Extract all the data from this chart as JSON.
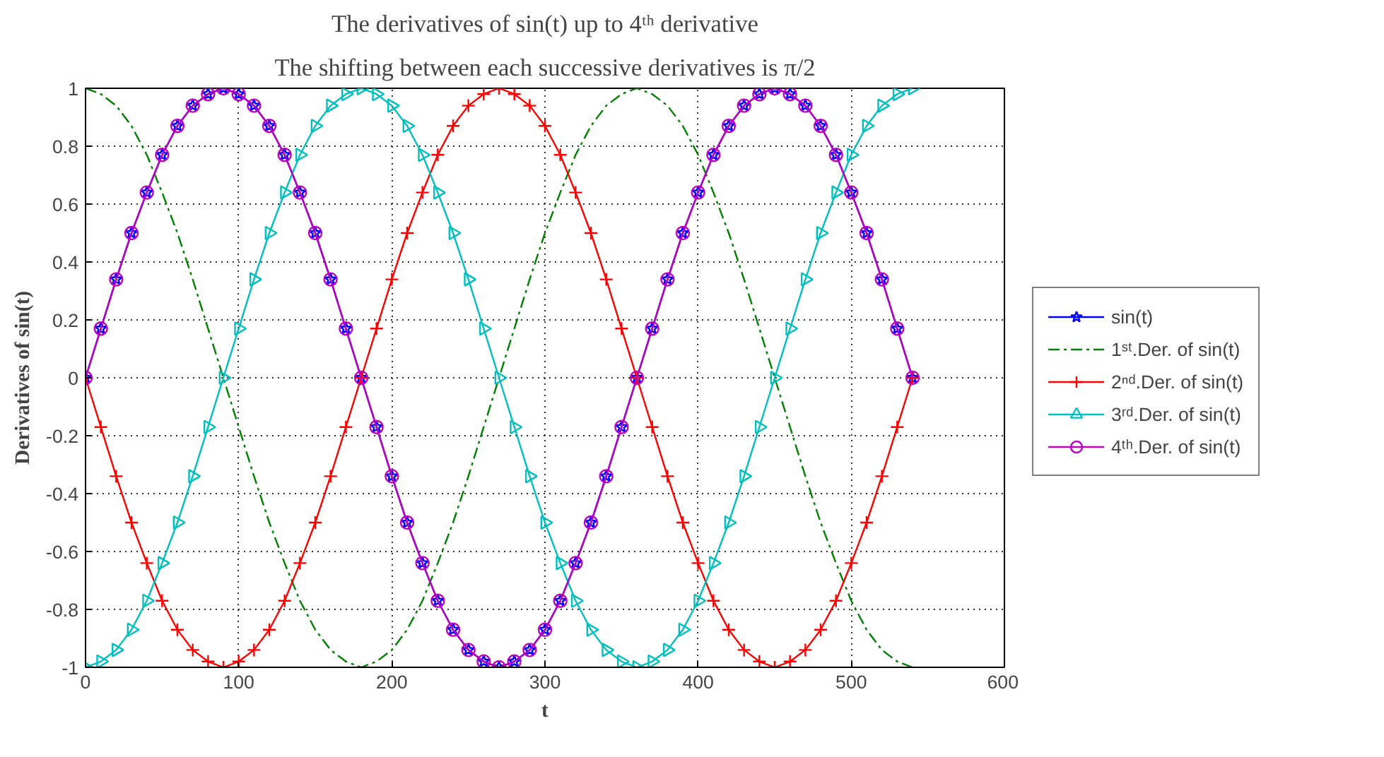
{
  "chart_data": {
    "type": "line",
    "title": "The derivatives of sin(t) up to 4ᵗʰ derivative",
    "subtitle": "The shifting between each successive derivatives is π/2",
    "xlabel": "t",
    "ylabel": "Derivatives of sin(t)",
    "x": [
      0,
      10,
      20,
      30,
      40,
      50,
      60,
      70,
      80,
      90,
      100,
      110,
      120,
      130,
      140,
      150,
      160,
      170,
      180,
      190,
      200,
      210,
      220,
      230,
      240,
      250,
      260,
      270,
      280,
      290,
      300,
      310,
      320,
      330,
      340,
      350,
      360,
      370,
      380,
      390,
      400,
      410,
      420,
      430,
      440,
      450,
      460,
      470,
      480,
      490,
      500,
      510,
      520,
      530,
      540
    ],
    "xlim": [
      0,
      600
    ],
    "xticks": [
      0,
      100,
      200,
      300,
      400,
      500,
      600
    ],
    "ylim": [
      -1,
      1
    ],
    "yticks": [
      -1,
      -0.8,
      -0.6,
      -0.4,
      -0.2,
      0,
      0.2,
      0.4,
      0.6,
      0.8,
      1
    ],
    "grid": true,
    "legend": "right",
    "series": [
      {
        "name": "sin(t)",
        "color": "#0000ff",
        "marker": "star",
        "line_style": "solid",
        "values": [
          0,
          0.17,
          0.34,
          0.5,
          0.64,
          0.77,
          0.87,
          0.94,
          0.98,
          1,
          0.98,
          0.94,
          0.87,
          0.77,
          0.64,
          0.5,
          0.34,
          0.17,
          0,
          -0.17,
          -0.34,
          -0.5,
          -0.64,
          -0.77,
          -0.87,
          -0.94,
          -0.98,
          -1,
          -0.98,
          -0.94,
          -0.87,
          -0.77,
          -0.64,
          -0.5,
          -0.34,
          -0.17,
          0,
          0.17,
          0.34,
          0.5,
          0.64,
          0.77,
          0.87,
          0.94,
          0.98,
          1,
          0.98,
          0.94,
          0.87,
          0.77,
          0.64,
          0.5,
          0.34,
          0.17,
          0
        ]
      },
      {
        "name": "1ˢᵗ.Der. of sin(t)",
        "color": "#008000",
        "marker": "none",
        "line_style": "dashed",
        "values": [
          1,
          0.98,
          0.94,
          0.87,
          0.77,
          0.64,
          0.5,
          0.34,
          0.17,
          0,
          -0.17,
          -0.34,
          -0.5,
          -0.64,
          -0.77,
          -0.87,
          -0.94,
          -0.98,
          -1,
          -0.98,
          -0.94,
          -0.87,
          -0.77,
          -0.64,
          -0.5,
          -0.34,
          -0.17,
          0,
          0.17,
          0.34,
          0.5,
          0.64,
          0.77,
          0.87,
          0.94,
          0.98,
          1,
          0.98,
          0.94,
          0.87,
          0.77,
          0.64,
          0.5,
          0.34,
          0.17,
          0,
          -0.17,
          -0.34,
          -0.5,
          -0.64,
          -0.77,
          -0.87,
          -0.94,
          -0.98,
          -1
        ]
      },
      {
        "name": "2ⁿᵈ.Der. of sin(t)",
        "color": "#ff0000",
        "marker": "cross",
        "line_style": "solid",
        "values": [
          0,
          -0.17,
          -0.34,
          -0.5,
          -0.64,
          -0.77,
          -0.87,
          -0.94,
          -0.98,
          -1,
          -0.98,
          -0.94,
          -0.87,
          -0.77,
          -0.64,
          -0.5,
          -0.34,
          -0.17,
          0,
          0.17,
          0.34,
          0.5,
          0.64,
          0.77,
          0.87,
          0.94,
          0.98,
          1,
          0.98,
          0.94,
          0.87,
          0.77,
          0.64,
          0.5,
          0.34,
          0.17,
          0,
          -0.17,
          -0.34,
          -0.5,
          -0.64,
          -0.77,
          -0.87,
          -0.94,
          -0.98,
          -1,
          -0.98,
          -0.94,
          -0.87,
          -0.77,
          -0.64,
          -0.5,
          -0.34,
          -0.17,
          0
        ]
      },
      {
        "name": "3ʳᵈ.Der. of sin(t)",
        "color": "#00bfbf",
        "marker": "triangle",
        "line_style": "solid",
        "values": [
          -1,
          -0.98,
          -0.94,
          -0.87,
          -0.77,
          -0.64,
          -0.5,
          -0.34,
          -0.17,
          0,
          0.17,
          0.34,
          0.5,
          0.64,
          0.77,
          0.87,
          0.94,
          0.98,
          1,
          0.98,
          0.94,
          0.87,
          0.77,
          0.64,
          0.5,
          0.34,
          0.17,
          0,
          -0.17,
          -0.34,
          -0.5,
          -0.64,
          -0.77,
          -0.87,
          -0.94,
          -0.98,
          -1,
          -0.98,
          -0.94,
          -0.87,
          -0.77,
          -0.64,
          -0.5,
          -0.34,
          -0.17,
          0,
          0.17,
          0.34,
          0.5,
          0.64,
          0.77,
          0.87,
          0.94,
          0.98,
          1
        ]
      },
      {
        "name": "4ᵗʰ.Der. of sin(t)",
        "color": "#bf00bf",
        "marker": "circle",
        "line_style": "solid",
        "values": [
          0,
          0.17,
          0.34,
          0.5,
          0.64,
          0.77,
          0.87,
          0.94,
          0.98,
          1,
          0.98,
          0.94,
          0.87,
          0.77,
          0.64,
          0.5,
          0.34,
          0.17,
          0,
          -0.17,
          -0.34,
          -0.5,
          -0.64,
          -0.77,
          -0.87,
          -0.94,
          -0.98,
          -1,
          -0.98,
          -0.94,
          -0.87,
          -0.77,
          -0.64,
          -0.5,
          -0.34,
          -0.17,
          0,
          0.17,
          0.34,
          0.5,
          0.64,
          0.77,
          0.87,
          0.94,
          0.98,
          1,
          0.98,
          0.94,
          0.87,
          0.77,
          0.64,
          0.5,
          0.34,
          0.17,
          0
        ]
      }
    ]
  }
}
